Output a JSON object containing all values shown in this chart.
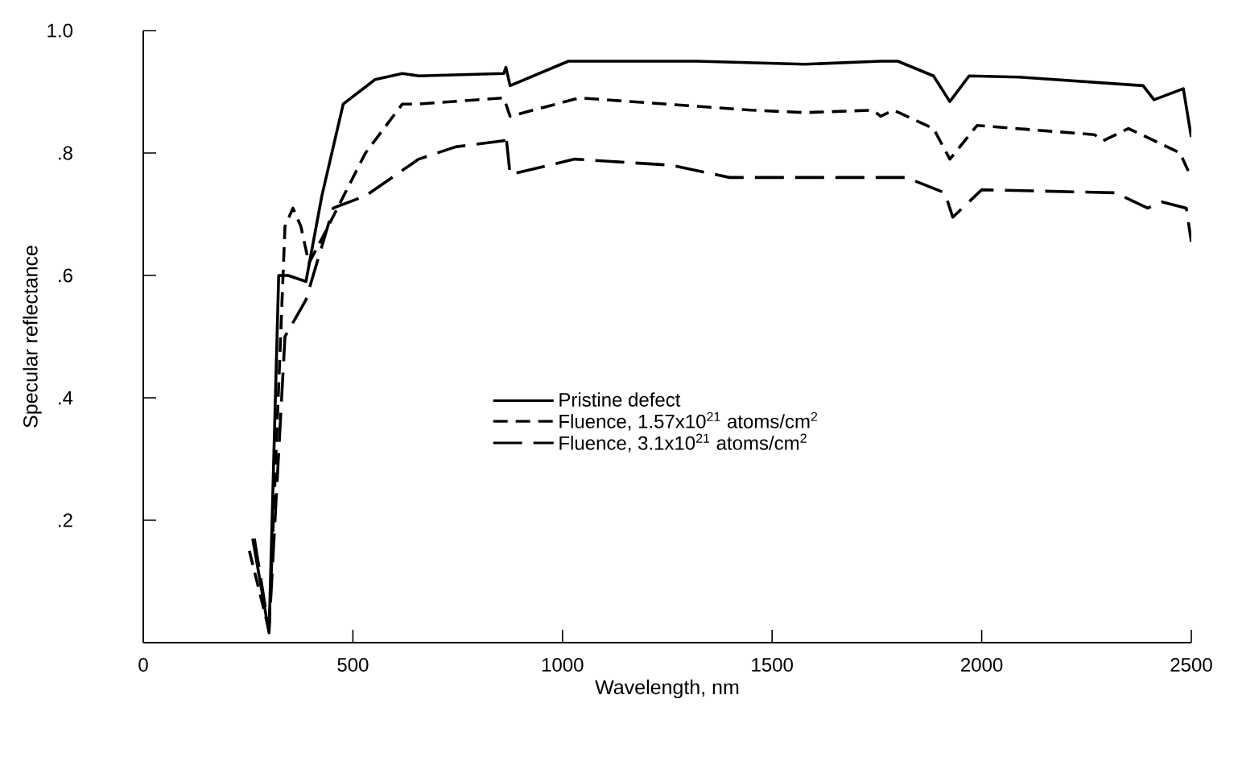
{
  "chart_data": {
    "type": "line",
    "xlabel": "Wavelength, nm",
    "ylabel": "Specular reflectance",
    "xlim": [
      0,
      2500
    ],
    "ylim": [
      0,
      1.0
    ],
    "xticks": [
      0,
      500,
      1000,
      1500,
      2000,
      2500
    ],
    "yticks": [
      {
        "value": 0.2,
        "label": ".2"
      },
      {
        "value": 0.4,
        "label": ".4"
      },
      {
        "value": 0.6,
        "label": ".6"
      },
      {
        "value": 0.8,
        "label": ".8"
      },
      {
        "value": 1.0,
        "label": "1.0"
      }
    ],
    "grid": false,
    "legend": "center",
    "series": [
      {
        "name": "Pristine defect",
        "color": "#000000",
        "line_style": "solid",
        "x": [
          261,
          300,
          323,
          345,
          388,
          426,
          477,
          553,
          618,
          657,
          860,
          865,
          875,
          1014,
          1321,
          1578,
          1759,
          1800,
          1885,
          1924,
          1970,
          2089,
          2385,
          2411,
          2481,
          2500
        ],
        "values": [
          0.17,
          0.016,
          0.6,
          0.6,
          0.59,
          0.73,
          0.88,
          0.92,
          0.93,
          0.926,
          0.93,
          0.94,
          0.91,
          0.95,
          0.95,
          0.945,
          0.95,
          0.95,
          0.926,
          0.884,
          0.926,
          0.924,
          0.91,
          0.887,
          0.905,
          0.826
        ]
      },
      {
        "name": "Fluence, 1.57x10$^{21}$ atoms/cm$^{2}$",
        "color": "#000000",
        "line_style": "dashed",
        "x": [
          253,
          300,
          338,
          357,
          376,
          395,
          426,
          530,
          618,
          657,
          860,
          875,
          1040,
          1451,
          1578,
          1740,
          1759,
          1790,
          1885,
          1924,
          1989,
          2269,
          2290,
          2350,
          2473,
          2500
        ],
        "values": [
          0.15,
          0.02,
          0.68,
          0.71,
          0.68,
          0.62,
          0.66,
          0.8,
          0.88,
          0.88,
          0.89,
          0.86,
          0.89,
          0.87,
          0.866,
          0.87,
          0.86,
          0.87,
          0.84,
          0.79,
          0.845,
          0.83,
          0.82,
          0.84,
          0.8,
          0.76
        ]
      },
      {
        "name": "Fluence, 3.1x10$^{21}$ atoms/cm$^{2}$",
        "color": "#000000",
        "line_style": "dashed",
        "x": [
          265,
          300,
          338,
          388,
          453,
          530,
          657,
          745,
          860,
          865,
          875,
          1029,
          1260,
          1398,
          1578,
          1820,
          1912,
          1931,
          2000,
          2319,
          2396,
          2430,
          2488,
          2500
        ],
        "values": [
          0.17,
          0.02,
          0.5,
          0.56,
          0.71,
          0.73,
          0.79,
          0.81,
          0.82,
          0.83,
          0.765,
          0.79,
          0.78,
          0.76,
          0.76,
          0.76,
          0.735,
          0.695,
          0.74,
          0.735,
          0.71,
          0.72,
          0.71,
          0.655
        ]
      }
    ]
  }
}
